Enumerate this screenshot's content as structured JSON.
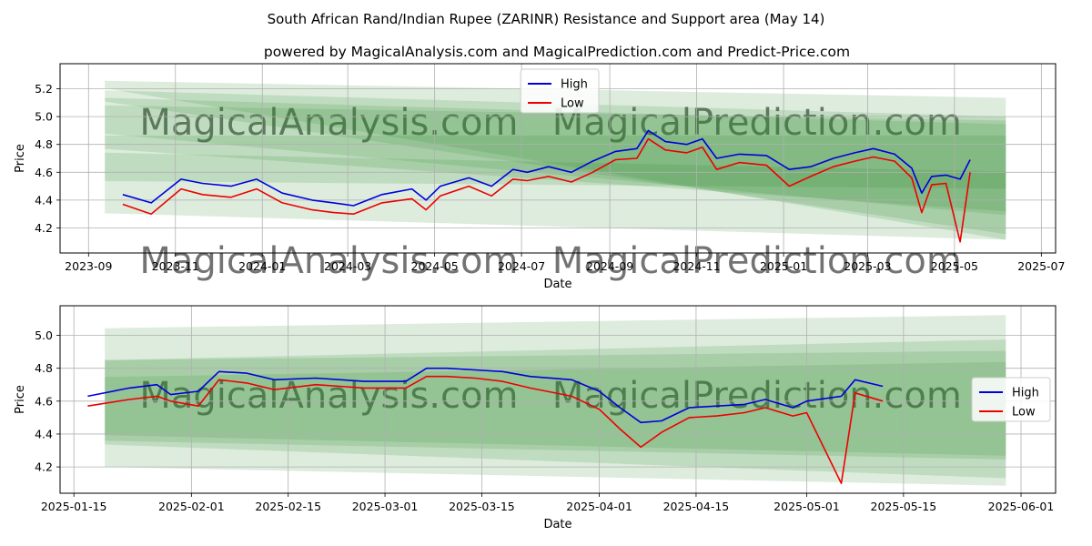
{
  "title": "South African Rand/Indian Rupee (ZARINR) Resistance and Support area (May 14)",
  "subtitle": "powered by MagicalAnalysis.com and MagicalPrediction.com and Predict-Price.com",
  "watermarks": [
    "MagicalAnalysis.com",
    "MagicalPrediction.com"
  ],
  "colors": {
    "high": "#0000dd",
    "low": "#ee0000",
    "band": "#2e8b2e",
    "grid": "#b0b0b0",
    "watermark": "#c8c8c8"
  },
  "chart_data": [
    {
      "type": "line",
      "xlabel": "Date",
      "ylabel": "Price",
      "x_ticks": [
        "2023-09",
        "2023-11",
        "2024-01",
        "2024-03",
        "2024-05",
        "2024-07",
        "2024-09",
        "2024-11",
        "2025-01",
        "2025-03",
        "2025-05",
        "2025-07"
      ],
      "x_tick_dates": [
        "2023-09-01",
        "2023-11-01",
        "2024-01-01",
        "2024-03-01",
        "2024-05-01",
        "2024-07-01",
        "2024-09-01",
        "2024-11-01",
        "2025-01-01",
        "2025-03-01",
        "2025-05-01",
        "2025-07-01"
      ],
      "xlim": [
        "2023-08-12",
        "2025-07-11"
      ],
      "y_ticks": [
        "4.2",
        "4.4",
        "4.6",
        "4.8",
        "5.0",
        "5.2"
      ],
      "ylim": [
        4.02,
        5.38
      ],
      "grid": true,
      "legend": "top-center",
      "series": [
        {
          "name": "High",
          "x": [
            "2023-09-25",
            "2023-10-15",
            "2023-11-05",
            "2023-11-20",
            "2023-12-10",
            "2023-12-28",
            "2024-01-15",
            "2024-02-05",
            "2024-02-20",
            "2024-03-05",
            "2024-03-25",
            "2024-04-15",
            "2024-04-25",
            "2024-05-05",
            "2024-05-25",
            "2024-06-10",
            "2024-06-25",
            "2024-07-05",
            "2024-07-20",
            "2024-08-05",
            "2024-08-20",
            "2024-09-05",
            "2024-09-20",
            "2024-09-28",
            "2024-10-10",
            "2024-10-25",
            "2024-11-05",
            "2024-11-15",
            "2024-12-01",
            "2024-12-20",
            "2025-01-05",
            "2025-01-20",
            "2025-02-05",
            "2025-02-20",
            "2025-03-05",
            "2025-03-20",
            "2025-04-01",
            "2025-04-08",
            "2025-04-15",
            "2025-04-25",
            "2025-05-05",
            "2025-05-12"
          ],
          "values": [
            4.44,
            4.38,
            4.55,
            4.52,
            4.5,
            4.55,
            4.45,
            4.4,
            4.38,
            4.36,
            4.44,
            4.48,
            4.4,
            4.5,
            4.56,
            4.5,
            4.62,
            4.6,
            4.64,
            4.6,
            4.68,
            4.75,
            4.77,
            4.9,
            4.82,
            4.8,
            4.84,
            4.7,
            4.73,
            4.72,
            4.62,
            4.64,
            4.7,
            4.74,
            4.77,
            4.73,
            4.63,
            4.45,
            4.57,
            4.58,
            4.55,
            4.69
          ]
        },
        {
          "name": "Low",
          "x": [
            "2023-09-25",
            "2023-10-15",
            "2023-11-05",
            "2023-11-20",
            "2023-12-10",
            "2023-12-28",
            "2024-01-15",
            "2024-02-05",
            "2024-02-20",
            "2024-03-05",
            "2024-03-25",
            "2024-04-15",
            "2024-04-25",
            "2024-05-05",
            "2024-05-25",
            "2024-06-10",
            "2024-06-25",
            "2024-07-05",
            "2024-07-20",
            "2024-08-05",
            "2024-08-20",
            "2024-09-05",
            "2024-09-20",
            "2024-09-28",
            "2024-10-10",
            "2024-10-25",
            "2024-11-05",
            "2024-11-15",
            "2024-12-01",
            "2024-12-20",
            "2025-01-05",
            "2025-01-20",
            "2025-02-05",
            "2025-02-20",
            "2025-03-05",
            "2025-03-20",
            "2025-04-01",
            "2025-04-08",
            "2025-04-15",
            "2025-04-25",
            "2025-05-05",
            "2025-05-12"
          ],
          "values": [
            4.37,
            4.3,
            4.48,
            4.44,
            4.42,
            4.48,
            4.38,
            4.33,
            4.31,
            4.3,
            4.38,
            4.41,
            4.33,
            4.43,
            4.5,
            4.43,
            4.55,
            4.54,
            4.57,
            4.53,
            4.6,
            4.69,
            4.7,
            4.84,
            4.76,
            4.74,
            4.78,
            4.62,
            4.67,
            4.65,
            4.5,
            4.57,
            4.64,
            4.68,
            4.71,
            4.68,
            4.56,
            4.31,
            4.51,
            4.52,
            4.1,
            4.6
          ]
        }
      ]
    },
    {
      "type": "line",
      "xlabel": "Date",
      "ylabel": "Price",
      "x_ticks": [
        "2025-01-15",
        "2025-02-01",
        "2025-02-15",
        "2025-03-01",
        "2025-03-15",
        "2025-04-01",
        "2025-04-15",
        "2025-05-01",
        "2025-05-15",
        "2025-06-01"
      ],
      "x_tick_dates": [
        "2025-01-15",
        "2025-02-01",
        "2025-02-15",
        "2025-03-01",
        "2025-03-15",
        "2025-04-01",
        "2025-04-15",
        "2025-05-01",
        "2025-05-15",
        "2025-06-01"
      ],
      "xlim": [
        "2025-01-13",
        "2025-06-06"
      ],
      "y_ticks": [
        "4.2",
        "4.4",
        "4.6",
        "4.8",
        "5.0"
      ],
      "ylim": [
        4.04,
        5.18
      ],
      "grid": true,
      "legend": "center-right",
      "series": [
        {
          "name": "High",
          "x": [
            "2025-01-17",
            "2025-01-23",
            "2025-01-27",
            "2025-01-29",
            "2025-02-02",
            "2025-02-05",
            "2025-02-09",
            "2025-02-13",
            "2025-02-19",
            "2025-02-26",
            "2025-03-04",
            "2025-03-07",
            "2025-03-10",
            "2025-03-14",
            "2025-03-18",
            "2025-03-22",
            "2025-03-28",
            "2025-04-01",
            "2025-04-04",
            "2025-04-07",
            "2025-04-10",
            "2025-04-14",
            "2025-04-18",
            "2025-04-22",
            "2025-04-25",
            "2025-04-29",
            "2025-05-01",
            "2025-05-06",
            "2025-05-08",
            "2025-05-12"
          ],
          "values": [
            4.63,
            4.68,
            4.7,
            4.64,
            4.66,
            4.78,
            4.77,
            4.73,
            4.74,
            4.72,
            4.72,
            4.8,
            4.8,
            4.79,
            4.78,
            4.75,
            4.73,
            4.66,
            4.56,
            4.47,
            4.48,
            4.56,
            4.57,
            4.58,
            4.61,
            4.56,
            4.6,
            4.63,
            4.73,
            4.69
          ]
        },
        {
          "name": "Low",
          "x": [
            "2025-01-17",
            "2025-01-23",
            "2025-01-27",
            "2025-01-29",
            "2025-02-02",
            "2025-02-05",
            "2025-02-09",
            "2025-02-13",
            "2025-02-19",
            "2025-02-26",
            "2025-03-04",
            "2025-03-07",
            "2025-03-10",
            "2025-03-14",
            "2025-03-18",
            "2025-03-22",
            "2025-03-28",
            "2025-04-01",
            "2025-04-04",
            "2025-04-07",
            "2025-04-10",
            "2025-04-14",
            "2025-04-18",
            "2025-04-22",
            "2025-04-25",
            "2025-04-29",
            "2025-05-01",
            "2025-05-06",
            "2025-05-08",
            "2025-05-12"
          ],
          "values": [
            4.57,
            4.61,
            4.63,
            4.6,
            4.57,
            4.73,
            4.71,
            4.67,
            4.7,
            4.68,
            4.68,
            4.75,
            4.75,
            4.74,
            4.72,
            4.68,
            4.63,
            4.55,
            4.43,
            4.32,
            4.41,
            4.5,
            4.51,
            4.53,
            4.56,
            4.51,
            4.53,
            4.1,
            4.65,
            4.6
          ]
        }
      ]
    }
  ]
}
